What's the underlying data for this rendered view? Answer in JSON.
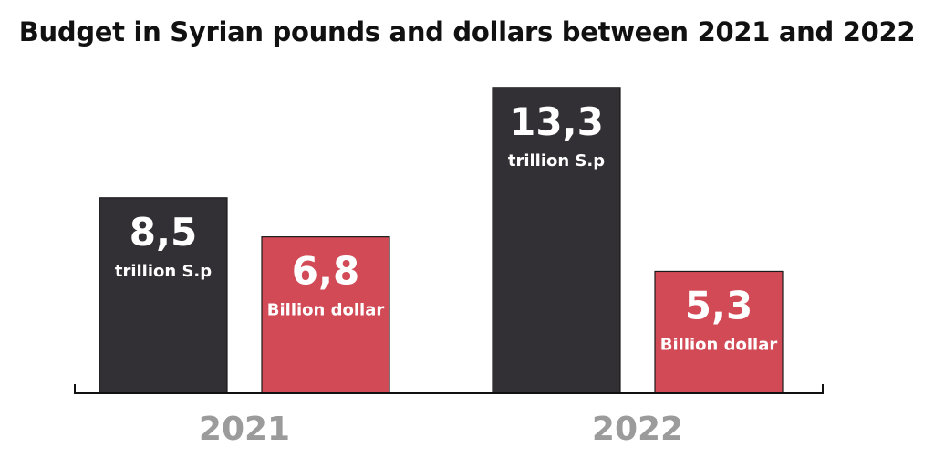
{
  "chart_data": {
    "type": "bar",
    "title": "Budget in Syrian pounds and dollars between 2021 and 2022",
    "categories": [
      "2021",
      "2022"
    ],
    "series": [
      {
        "unit_label": "trillion S.p",
        "color": "#333035",
        "values": [
          8.5,
          13.3
        ],
        "value_labels": [
          "8,5",
          "13,3"
        ]
      },
      {
        "unit_label": "Billion dollar",
        "color": "#d14a55",
        "values": [
          6.8,
          5.3
        ],
        "value_labels": [
          "6,8",
          "5,3"
        ]
      }
    ],
    "grid": false
  }
}
